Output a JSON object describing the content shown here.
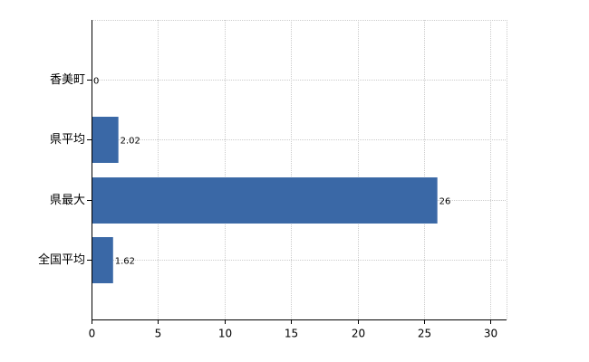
{
  "chart_data": {
    "type": "hbar",
    "categories": [
      "香美町",
      "県平均",
      "県最大",
      "全国平均"
    ],
    "values": [
      0,
      2.02,
      26,
      1.62
    ],
    "color": "#3a68a6",
    "xlim": [
      0,
      31.2
    ],
    "xticks": [
      0,
      5,
      10,
      15,
      20,
      25,
      30
    ],
    "grid": true
  }
}
